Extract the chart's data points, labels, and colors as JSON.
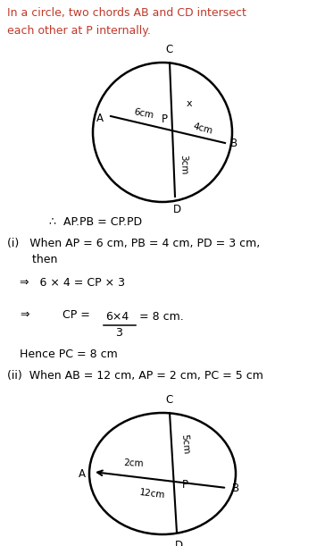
{
  "title_line1": "In a circle, two chords AB and CD intersect",
  "title_line2": "each other at P internally.",
  "title_color": "#c0392b",
  "bg_color": "#ffffff",
  "theorem_line": "∴  AP.PB = CP.PD",
  "part_i_line1": "(i)   When AP = 6 cm, PB = 4 cm, PD = 3 cm,",
  "part_i_line2": "       then",
  "eq1": "⇒   6 × 4 = CP × 3",
  "eq2_num": "6×4",
  "eq2_den": "3",
  "hence": "Hence PC = 8 cm",
  "part_ii": "(ii)  When AB = 12 cm, AP = 2 cm, PC = 5 cm"
}
